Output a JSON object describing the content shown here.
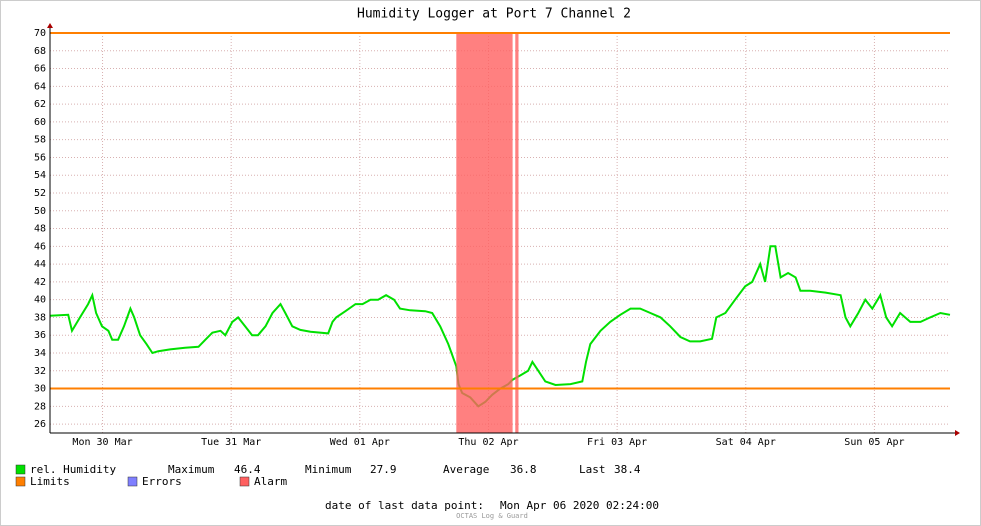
{
  "chart_data": {
    "type": "line",
    "title": "Humidity Logger at Port 7 Channel 2",
    "x": [
      2.2,
      5.6,
      6.3,
      7.8,
      9.3,
      10.1,
      10.8,
      11.9,
      13.1,
      13.8,
      14.9,
      16.0,
      17.2,
      17.9,
      19.0,
      20.2,
      21.3,
      22.4,
      24.6,
      27.4,
      29.9,
      31.2,
      32.5,
      34.0,
      34.9,
      36.2,
      37.3,
      38.6,
      39.9,
      41.0,
      42.4,
      43.7,
      45.2,
      46.1,
      47.4,
      48.9,
      50.8,
      54.1,
      54.9,
      55.6,
      57.3,
      59.2,
      60.5,
      62.0,
      63.4,
      64.9,
      66.4,
      67.5,
      69.4,
      72.2,
      73.5,
      75.0,
      76.5,
      78.0,
      78.4,
      79.1,
      80.6,
      82.1,
      83.4,
      84.7,
      86.2,
      87.7,
      88.5,
      90.0,
      91.4,
      92.2,
      93.3,
      94.6,
      96.5,
      99.3,
      101.5,
      102.2,
      103.0,
      104.9,
      106.7,
      108.6,
      110.5,
      112.3,
      114.2,
      116.1,
      117.9,
      119.8,
      121.6,
      123.5,
      125.7,
      126.5,
      128.2,
      130.0,
      131.9,
      133.2,
      134.7,
      135.6,
      136.6,
      137.5,
      138.5,
      139.9,
      141.3,
      142.2,
      144.0,
      146.9,
      149.7,
      150.6,
      151.5,
      153.0,
      154.3,
      155.6,
      157.1,
      158.2,
      159.3,
      160.8,
      162.7,
      164.6,
      166.4,
      168.3,
      170.1
    ],
    "series": [
      {
        "name": "rel. Humidity",
        "color": "#00e000",
        "values": [
          38.2,
          38.3,
          36.5,
          38,
          39.5,
          40.5,
          38.5,
          37,
          36.5,
          35.5,
          35.5,
          37,
          39,
          38,
          36,
          35,
          34,
          34.2,
          34.4,
          34.6,
          34.7,
          35.5,
          36.3,
          36.5,
          36,
          37.5,
          38,
          37,
          36,
          36,
          37,
          38.5,
          39.5,
          38.5,
          37,
          36.6,
          36.4,
          36.2,
          37.5,
          38,
          38.7,
          39.5,
          39.5,
          40,
          40,
          40.5,
          40,
          39,
          38.8,
          38.7,
          38.5,
          37,
          35,
          32.5,
          30.5,
          29.5,
          29,
          28,
          28.5,
          29.3,
          30,
          30.5,
          31,
          31.5,
          32,
          33,
          32,
          30.8,
          30.4,
          30.5,
          30.8,
          33,
          35,
          36.5,
          37.5,
          38.3,
          39,
          39,
          38.5,
          38,
          37,
          35.8,
          35.3,
          35.3,
          35.6,
          38,
          38.5,
          40,
          41.5,
          42,
          44,
          42,
          46,
          46,
          42.5,
          43,
          42.5,
          41,
          41,
          40.8,
          40.5,
          38,
          37,
          38.5,
          40,
          39,
          40.5,
          38,
          37,
          38.5,
          37.5,
          37.5,
          38,
          38.5,
          38.3
        ]
      }
    ],
    "limits": {
      "name": "Limits",
      "color": "#ff7f00",
      "values": [
        30,
        70
      ]
    },
    "errors": {
      "name": "Errors",
      "color": "#7f7fff"
    },
    "alarm": {
      "name": "Alarm",
      "color": "#ff6060",
      "periods": [
        [
          78.0,
          88.5
        ],
        [
          89.0,
          89.6
        ]
      ]
    },
    "stats": [
      {
        "label": "Maximum",
        "value": 46.4
      },
      {
        "label": "Minimum",
        "value": 27.9
      },
      {
        "label": "Average",
        "value": 36.8
      },
      {
        "label": "Last",
        "value": 38.4
      }
    ],
    "xlim": [
      2.2,
      170.1
    ],
    "ylim": [
      25,
      70
    ],
    "xticks": [
      {
        "value": 12,
        "label": "Mon 30 Mar"
      },
      {
        "value": 36,
        "label": "Tue 31 Mar"
      },
      {
        "value": 60,
        "label": "Wed 01 Apr"
      },
      {
        "value": 84,
        "label": "Thu 02 Apr"
      },
      {
        "value": 108,
        "label": "Fri 03 Apr"
      },
      {
        "value": 132,
        "label": "Sat 04 Apr"
      },
      {
        "value": 156,
        "label": "Sun 05 Apr"
      }
    ],
    "yticks": [
      26,
      28,
      30,
      32,
      34,
      36,
      38,
      40,
      42,
      44,
      46,
      48,
      50,
      52,
      54,
      56,
      58,
      60,
      62,
      64,
      66,
      68,
      70
    ],
    "grid": true,
    "footer": {
      "label": "date of last data point:",
      "value": "Mon Apr 06 2020 02:24:00"
    },
    "brand": "OCTAS Log & Guard"
  }
}
